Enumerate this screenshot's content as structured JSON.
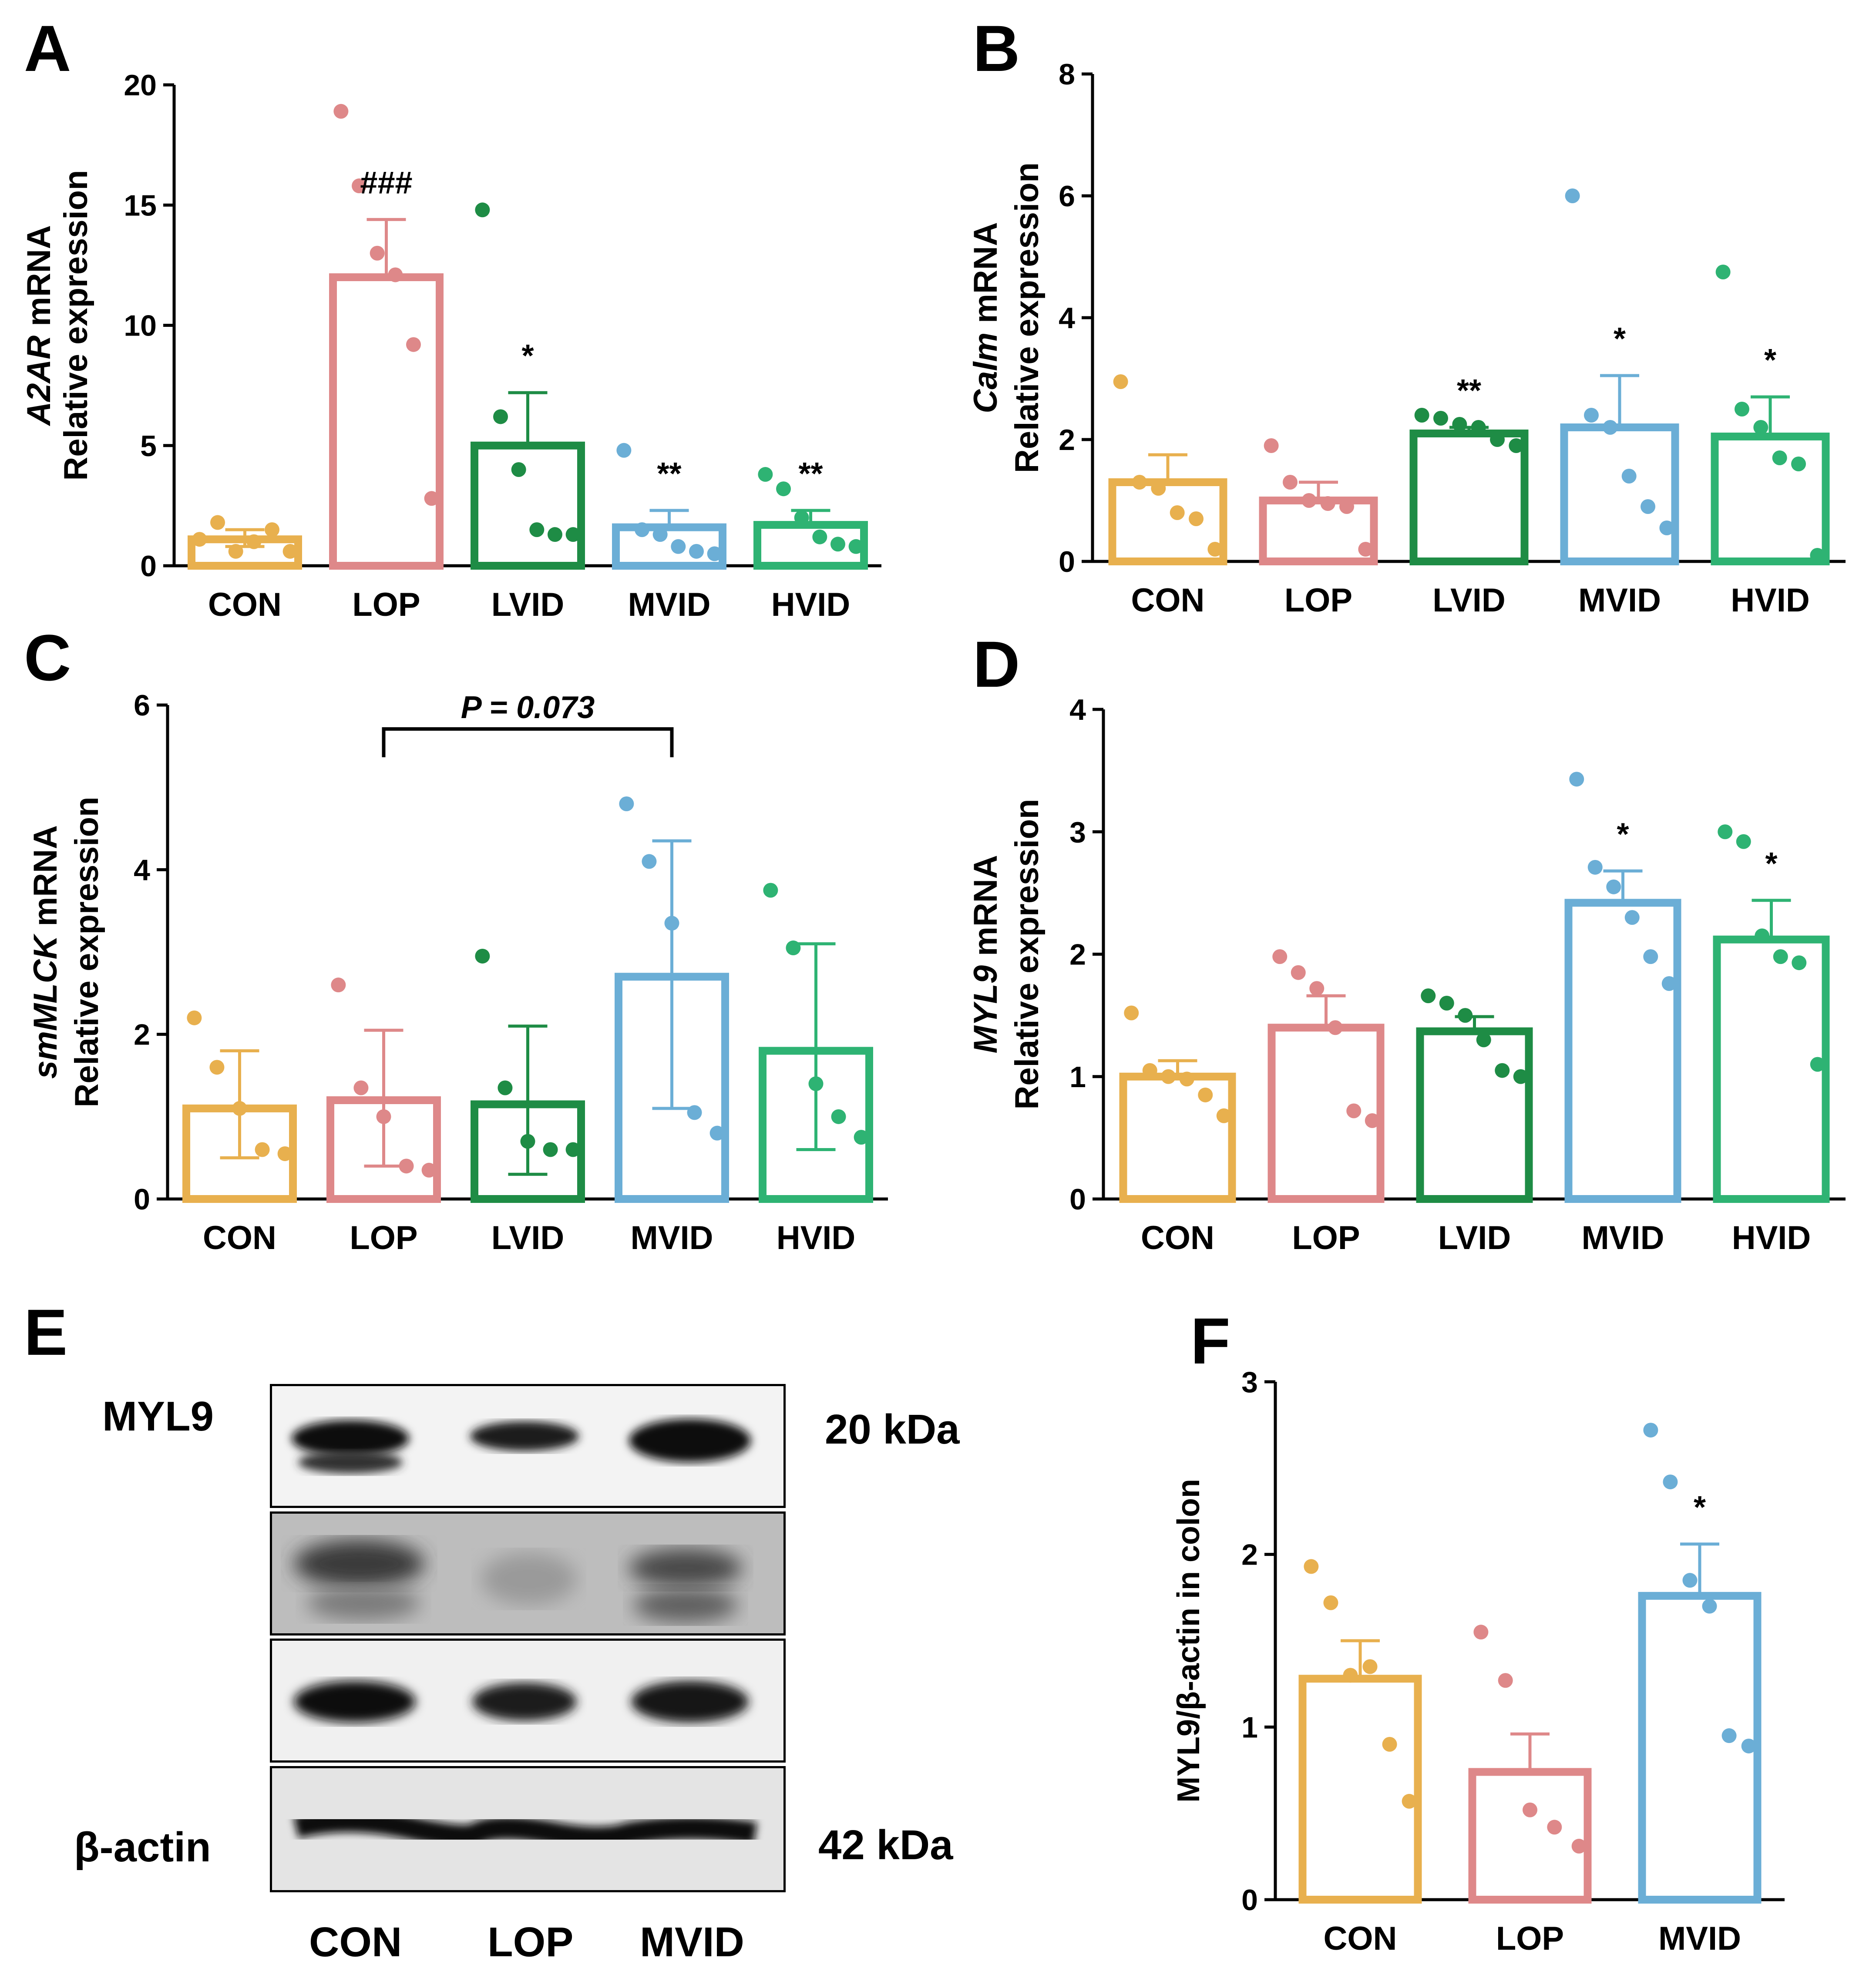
{
  "figure": {
    "panel_letters": [
      "A",
      "B",
      "C",
      "D",
      "E",
      "F"
    ]
  },
  "chart_data": [
    {
      "panel": "A",
      "type": "bar",
      "ylabel_italic": "A2AR",
      "ylabel_rest": " mRNA",
      "ylabel2": "Relative expression",
      "categories": [
        "CON",
        "LOP",
        "LVID",
        "MVID",
        "HVID"
      ],
      "colors": [
        "#E8B04E",
        "#DE8889",
        "#1E8C45",
        "#6BAED6",
        "#2EB373"
      ],
      "values": [
        1.1,
        12.0,
        5.0,
        1.6,
        1.7
      ],
      "error_up": [
        0.4,
        2.4,
        2.2,
        0.7,
        0.6
      ],
      "error_down": [
        0.3,
        0,
        0,
        0,
        0
      ],
      "points": [
        [
          1.1,
          1.8,
          0.6,
          1.0,
          1.5,
          0.6
        ],
        [
          18.9,
          15.8,
          13.0,
          12.1,
          9.2,
          2.8
        ],
        [
          14.8,
          6.2,
          4.0,
          1.5,
          1.3,
          1.3
        ],
        [
          4.8,
          1.5,
          1.3,
          0.8,
          0.6,
          0.5
        ],
        [
          3.8,
          3.2,
          2.0,
          1.2,
          0.9,
          0.8
        ]
      ],
      "annotations": [
        "",
        "###",
        "*",
        "**",
        "**"
      ],
      "yticks": [
        0,
        5,
        10,
        15,
        20
      ],
      "ylim": [
        0,
        20
      ]
    },
    {
      "panel": "B",
      "type": "bar",
      "ylabel_italic": "Calm",
      "ylabel_rest": " mRNA",
      "ylabel2": "Relative expression",
      "categories": [
        "CON",
        "LOP",
        "LVID",
        "MVID",
        "HVID"
      ],
      "colors": [
        "#E8B04E",
        "#DE8889",
        "#1E8C45",
        "#6BAED6",
        "#2EB373"
      ],
      "values": [
        1.3,
        1.0,
        2.1,
        2.2,
        2.05
      ],
      "error_up": [
        0.45,
        0.3,
        0.1,
        0.85,
        0.65
      ],
      "error_down": [
        0,
        0,
        0,
        0,
        0
      ],
      "points": [
        [
          2.95,
          1.3,
          1.2,
          0.8,
          0.7,
          0.2
        ],
        [
          1.9,
          1.3,
          1.0,
          0.95,
          0.9,
          0.2
        ],
        [
          2.4,
          2.35,
          2.25,
          2.2,
          2.0,
          1.9
        ],
        [
          6.0,
          2.4,
          2.2,
          1.4,
          0.9,
          0.55
        ],
        [
          4.75,
          2.5,
          2.2,
          1.7,
          1.6,
          0.1
        ]
      ],
      "annotations": [
        "",
        "",
        "**",
        "*",
        "*"
      ],
      "yticks": [
        0,
        2,
        4,
        6,
        8
      ],
      "ylim": [
        0,
        8
      ]
    },
    {
      "panel": "C",
      "type": "bar",
      "ylabel_italic": "smMLCK",
      "ylabel_rest": " mRNA",
      "ylabel2": "Relative expression",
      "categories": [
        "CON",
        "LOP",
        "LVID",
        "MVID",
        "HVID"
      ],
      "colors": [
        "#E8B04E",
        "#DE8889",
        "#1E8C45",
        "#6BAED6",
        "#2EB373"
      ],
      "values": [
        1.1,
        1.2,
        1.15,
        2.7,
        1.8
      ],
      "error_up": [
        0.7,
        0.85,
        0.95,
        1.65,
        1.3
      ],
      "error_down": [
        0.6,
        0.8,
        0.85,
        1.6,
        1.2
      ],
      "points": [
        [
          2.2,
          1.6,
          1.1,
          0.6,
          0.55
        ],
        [
          2.6,
          1.35,
          1.0,
          0.4,
          0.35
        ],
        [
          2.95,
          1.35,
          0.7,
          0.6,
          0.6
        ],
        [
          4.8,
          4.1,
          3.35,
          1.05,
          0.8
        ],
        [
          3.75,
          3.05,
          1.4,
          1.0,
          0.75
        ]
      ],
      "annotations": [
        "",
        "",
        "",
        "",
        ""
      ],
      "bracket": {
        "from": 1,
        "to": 3,
        "label": "P = 0.073"
      },
      "yticks": [
        0,
        2,
        4,
        6
      ],
      "ylim": [
        0,
        6
      ]
    },
    {
      "panel": "D",
      "type": "bar",
      "ylabel_italic": "MYL9",
      "ylabel_rest": "  mRNA",
      "ylabel2": "Relative expression",
      "categories": [
        "CON",
        "LOP",
        "LVID",
        "MVID",
        "HVID"
      ],
      "colors": [
        "#E8B04E",
        "#DE8889",
        "#1E8C45",
        "#6BAED6",
        "#2EB373"
      ],
      "values": [
        1.0,
        1.4,
        1.37,
        2.42,
        2.12
      ],
      "error_up": [
        0.13,
        0.26,
        0.12,
        0.26,
        0.32
      ],
      "error_down": [
        0,
        0,
        0,
        0,
        0
      ],
      "points": [
        [
          1.52,
          1.05,
          1.0,
          0.98,
          0.85,
          0.68
        ],
        [
          1.98,
          1.85,
          1.72,
          1.4,
          0.72,
          0.64
        ],
        [
          1.66,
          1.6,
          1.5,
          1.3,
          1.05,
          1.0
        ],
        [
          3.43,
          2.71,
          2.55,
          2.3,
          1.98,
          1.76
        ],
        [
          3.0,
          2.92,
          2.15,
          1.98,
          1.93,
          1.1
        ]
      ],
      "annotations": [
        "",
        "",
        "",
        "*",
        "*"
      ],
      "yticks": [
        0,
        1,
        2,
        3,
        4
      ],
      "ylim": [
        0,
        4
      ]
    },
    {
      "panel": "F",
      "type": "bar",
      "ylabel": "MYL9/β-actin in colon",
      "categories": [
        "CON",
        "LOP",
        "MVID"
      ],
      "colors": [
        "#E8B04E",
        "#DE8889",
        "#6BAED6"
      ],
      "values": [
        1.28,
        0.74,
        1.76
      ],
      "error_up": [
        0.22,
        0.22,
        0.3
      ],
      "error_down": [
        0,
        0,
        0
      ],
      "points": [
        [
          1.93,
          1.72,
          1.3,
          1.35,
          0.9,
          0.57
        ],
        [
          1.55,
          1.27,
          0.52,
          0.42,
          0.31
        ],
        [
          2.72,
          2.42,
          1.85,
          1.7,
          0.95,
          0.89
        ]
      ],
      "annotations": [
        "",
        "",
        "*"
      ],
      "yticks": [
        0,
        1,
        2,
        3
      ],
      "ylim": [
        0,
        3
      ]
    }
  ],
  "western_blot": {
    "protein_label": "MYL9",
    "control_label": "β-actin",
    "size_top": "20 kDa",
    "size_bottom": "42 kDa",
    "lanes": [
      "CON",
      "LOP",
      "MVID"
    ]
  }
}
